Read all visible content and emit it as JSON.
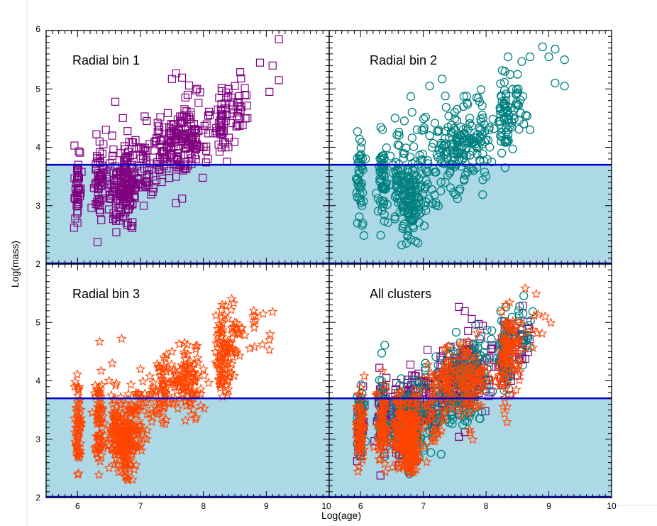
{
  "chart_data": {
    "type": "scatter",
    "layout": "2x2 panels, shared axes",
    "xlabel": "Log(age)",
    "ylabel": "Log(mass)",
    "xlim": [
      5.5,
      10
    ],
    "ylim": [
      2,
      6
    ],
    "x_ticks": [
      "6",
      "7",
      "8",
      "9",
      "10"
    ],
    "y_ticks": [
      "2",
      "3",
      "4",
      "5",
      "6"
    ],
    "threshold_log_mass": 3.7,
    "colors": {
      "shade": "#add8e6",
      "threshold_line": "#0000cc",
      "bin1": "#800080",
      "bin2": "#008080",
      "bin3": "#ff4500"
    },
    "panels": [
      {
        "title": "Radial bin 1",
        "markers": [
          "square"
        ],
        "series": [
          {
            "name": "Radial bin 1",
            "marker": "square",
            "color": "#800080",
            "approx_points": [
              [
                5.95,
                4.03
              ],
              [
                6.02,
                3.93
              ],
              [
                6.0,
                3.6
              ],
              [
                6.0,
                3.1
              ],
              [
                6.0,
                3.0
              ],
              [
                6.35,
                4.1
              ],
              [
                6.35,
                3.5
              ],
              [
                6.35,
                3.0
              ],
              [
                6.35,
                2.93
              ],
              [
                6.45,
                4.3
              ],
              [
                6.55,
                4.2
              ],
              [
                6.6,
                4.78
              ],
              [
                6.6,
                3.3
              ],
              [
                6.6,
                2.8
              ],
              [
                6.72,
                4.5
              ],
              [
                6.75,
                3.5
              ],
              [
                6.8,
                3.2
              ],
              [
                6.8,
                2.7
              ],
              [
                6.85,
                2.65
              ],
              [
                7.05,
                3.0
              ],
              [
                7.1,
                4.45
              ],
              [
                7.2,
                3.5
              ],
              [
                7.3,
                4.3
              ],
              [
                7.5,
                5.17
              ],
              [
                7.55,
                4.1
              ],
              [
                7.6,
                3.8
              ],
              [
                7.75,
                4.9
              ],
              [
                7.8,
                4.6
              ],
              [
                7.85,
                4.4
              ],
              [
                7.9,
                5.0
              ],
              [
                7.95,
                4.0
              ],
              [
                8.0,
                4.3
              ],
              [
                8.25,
                4.85
              ],
              [
                8.3,
                4.3
              ],
              [
                8.35,
                4.0
              ],
              [
                8.4,
                5.0
              ],
              [
                8.5,
                5.05
              ],
              [
                8.55,
                4.6
              ],
              [
                8.6,
                5.18
              ],
              [
                8.7,
                4.5
              ],
              [
                8.9,
                5.45
              ],
              [
                9.05,
                4.95
              ],
              [
                9.1,
                5.4
              ],
              [
                9.2,
                5.15
              ],
              [
                9.2,
                5.85
              ]
            ]
          }
        ]
      },
      {
        "title": "Radial bin 2",
        "markers": [
          "circle"
        ],
        "series": [
          {
            "name": "Radial bin 2",
            "marker": "circle",
            "color": "#008080",
            "approx_points": [
              [
                5.95,
                4.27
              ],
              [
                6.0,
                3.8
              ],
              [
                6.0,
                3.3
              ],
              [
                5.95,
                2.7
              ],
              [
                6.35,
                4.3
              ],
              [
                6.35,
                3.7
              ],
              [
                6.35,
                2.98
              ],
              [
                6.55,
                4.5
              ],
              [
                6.6,
                3.6
              ],
              [
                6.7,
                2.9
              ],
              [
                6.75,
                2.5
              ],
              [
                6.8,
                2.42
              ],
              [
                6.82,
                4.6
              ],
              [
                6.8,
                4.87
              ],
              [
                6.9,
                4.3
              ],
              [
                7.1,
                4.2
              ],
              [
                7.1,
                5.05
              ],
              [
                7.3,
                5.17
              ],
              [
                7.35,
                4.88
              ],
              [
                7.35,
                3.4
              ],
              [
                7.5,
                4.6
              ],
              [
                7.6,
                4.2
              ],
              [
                7.8,
                3.6
              ],
              [
                7.85,
                4.85
              ],
              [
                7.95,
                4.5
              ],
              [
                8.0,
                3.5
              ],
              [
                8.25,
                3.9
              ],
              [
                8.3,
                5.3
              ],
              [
                8.35,
                5.55
              ],
              [
                8.5,
                5.25
              ],
              [
                8.6,
                4.4
              ],
              [
                8.7,
                5.55
              ],
              [
                8.7,
                4.3
              ],
              [
                8.9,
                5.72
              ],
              [
                9.0,
                5.55
              ],
              [
                9.1,
                5.68
              ],
              [
                9.1,
                5.1
              ],
              [
                9.25,
                5.5
              ],
              [
                9.25,
                5.05
              ]
            ]
          }
        ]
      },
      {
        "title": "Radial bin 3",
        "markers": [
          "star"
        ],
        "series": [
          {
            "name": "Radial bin 3",
            "marker": "star",
            "color": "#ff4500",
            "approx_points": [
              [
                5.95,
                3.9
              ],
              [
                6.0,
                3.0
              ],
              [
                6.0,
                2.7
              ],
              [
                6.05,
                3.5
              ],
              [
                6.35,
                4.67
              ],
              [
                6.35,
                3.9
              ],
              [
                6.35,
                3.0
              ],
              [
                6.5,
                4.0
              ],
              [
                6.55,
                4.3
              ],
              [
                6.6,
                3.3
              ],
              [
                6.7,
                4.72
              ],
              [
                6.75,
                2.5
              ],
              [
                6.8,
                2.3
              ],
              [
                6.9,
                3.5
              ],
              [
                7.0,
                4.2
              ],
              [
                7.1,
                3.0
              ],
              [
                7.3,
                3.85
              ],
              [
                7.4,
                4.2
              ],
              [
                7.5,
                4.5
              ],
              [
                7.55,
                3.7
              ],
              [
                7.6,
                4.0
              ],
              [
                7.7,
                4.65
              ],
              [
                7.75,
                3.8
              ],
              [
                7.9,
                4.6
              ],
              [
                8.0,
                4.2
              ],
              [
                8.2,
                5.12
              ],
              [
                8.25,
                4.2
              ],
              [
                8.3,
                5.3
              ],
              [
                8.35,
                4.5
              ],
              [
                8.45,
                5.4
              ],
              [
                8.5,
                5.0
              ],
              [
                8.6,
                4.9
              ],
              [
                8.8,
                5.2
              ],
              [
                8.95,
                5.15
              ],
              [
                9.05,
                4.7
              ],
              [
                9.1,
                5.18
              ]
            ]
          }
        ]
      },
      {
        "title": "All clusters",
        "markers": [
          "square",
          "circle",
          "star"
        ],
        "series": [
          {
            "name": "Radial bin 1",
            "marker": "square",
            "color": "#800080"
          },
          {
            "name": "Radial bin 2",
            "marker": "circle",
            "color": "#008080"
          },
          {
            "name": "Radial bin 3",
            "marker": "star",
            "color": "#ff4500"
          }
        ]
      }
    ]
  }
}
